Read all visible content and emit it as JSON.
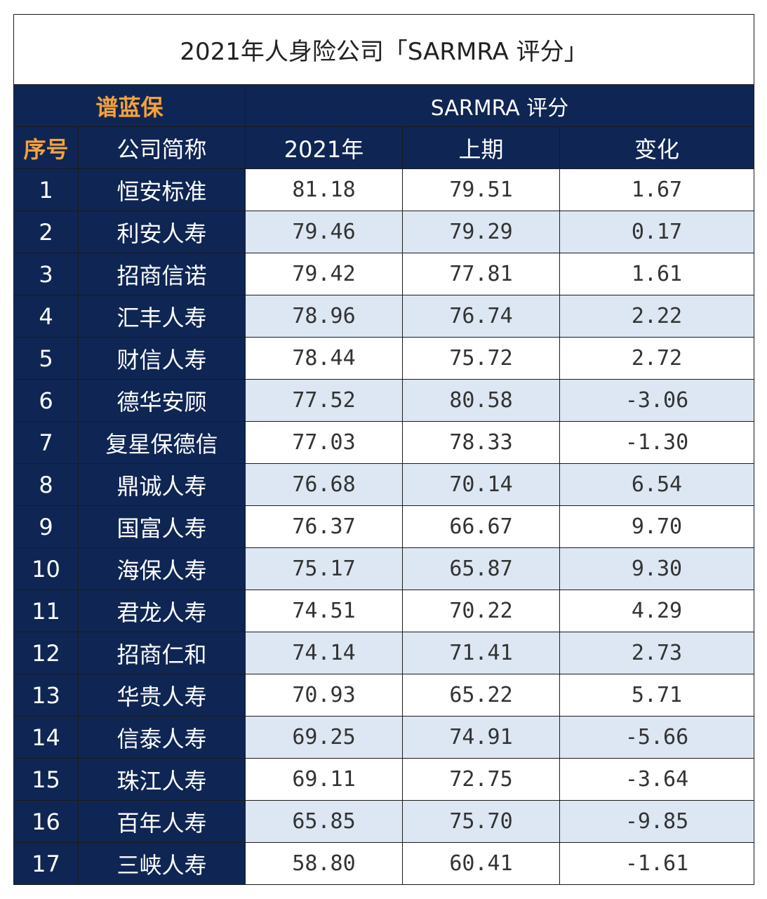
{
  "title": "2021年人身险公司「SARMRA 评分」",
  "header": {
    "brand": "谱蓝保",
    "group_label": "SARMRA 评分",
    "col_rank": "序号",
    "col_company": "公司简称",
    "col_2021": "2021年",
    "col_prev": "上期",
    "col_change": "变化"
  },
  "colors": {
    "navy": "#0f2654",
    "orange": "#f5a23a",
    "stripe": "#dce7f3"
  },
  "rows": [
    {
      "rank": "1",
      "company": "恒安标准",
      "y2021": "81.18",
      "prev": "79.51",
      "change": "1.67"
    },
    {
      "rank": "2",
      "company": "利安人寿",
      "y2021": "79.46",
      "prev": "79.29",
      "change": "0.17"
    },
    {
      "rank": "3",
      "company": "招商信诺",
      "y2021": "79.42",
      "prev": "77.81",
      "change": "1.61"
    },
    {
      "rank": "4",
      "company": "汇丰人寿",
      "y2021": "78.96",
      "prev": "76.74",
      "change": "2.22"
    },
    {
      "rank": "5",
      "company": "财信人寿",
      "y2021": "78.44",
      "prev": "75.72",
      "change": "2.72"
    },
    {
      "rank": "6",
      "company": "德华安顾",
      "y2021": "77.52",
      "prev": "80.58",
      "change": "-3.06"
    },
    {
      "rank": "7",
      "company": "复星保德信",
      "y2021": "77.03",
      "prev": "78.33",
      "change": "-1.30"
    },
    {
      "rank": "8",
      "company": "鼎诚人寿",
      "y2021": "76.68",
      "prev": "70.14",
      "change": "6.54"
    },
    {
      "rank": "9",
      "company": "国富人寿",
      "y2021": "76.37",
      "prev": "66.67",
      "change": "9.70"
    },
    {
      "rank": "10",
      "company": "海保人寿",
      "y2021": "75.17",
      "prev": "65.87",
      "change": "9.30"
    },
    {
      "rank": "11",
      "company": "君龙人寿",
      "y2021": "74.51",
      "prev": "70.22",
      "change": "4.29"
    },
    {
      "rank": "12",
      "company": "招商仁和",
      "y2021": "74.14",
      "prev": "71.41",
      "change": "2.73"
    },
    {
      "rank": "13",
      "company": "华贵人寿",
      "y2021": "70.93",
      "prev": "65.22",
      "change": "5.71"
    },
    {
      "rank": "14",
      "company": "信泰人寿",
      "y2021": "69.25",
      "prev": "74.91",
      "change": "-5.66"
    },
    {
      "rank": "15",
      "company": "珠江人寿",
      "y2021": "69.11",
      "prev": "72.75",
      "change": "-3.64"
    },
    {
      "rank": "16",
      "company": "百年人寿",
      "y2021": "65.85",
      "prev": "75.70",
      "change": "-9.85"
    },
    {
      "rank": "17",
      "company": "三峡人寿",
      "y2021": "58.80",
      "prev": "60.41",
      "change": "-1.61"
    }
  ]
}
